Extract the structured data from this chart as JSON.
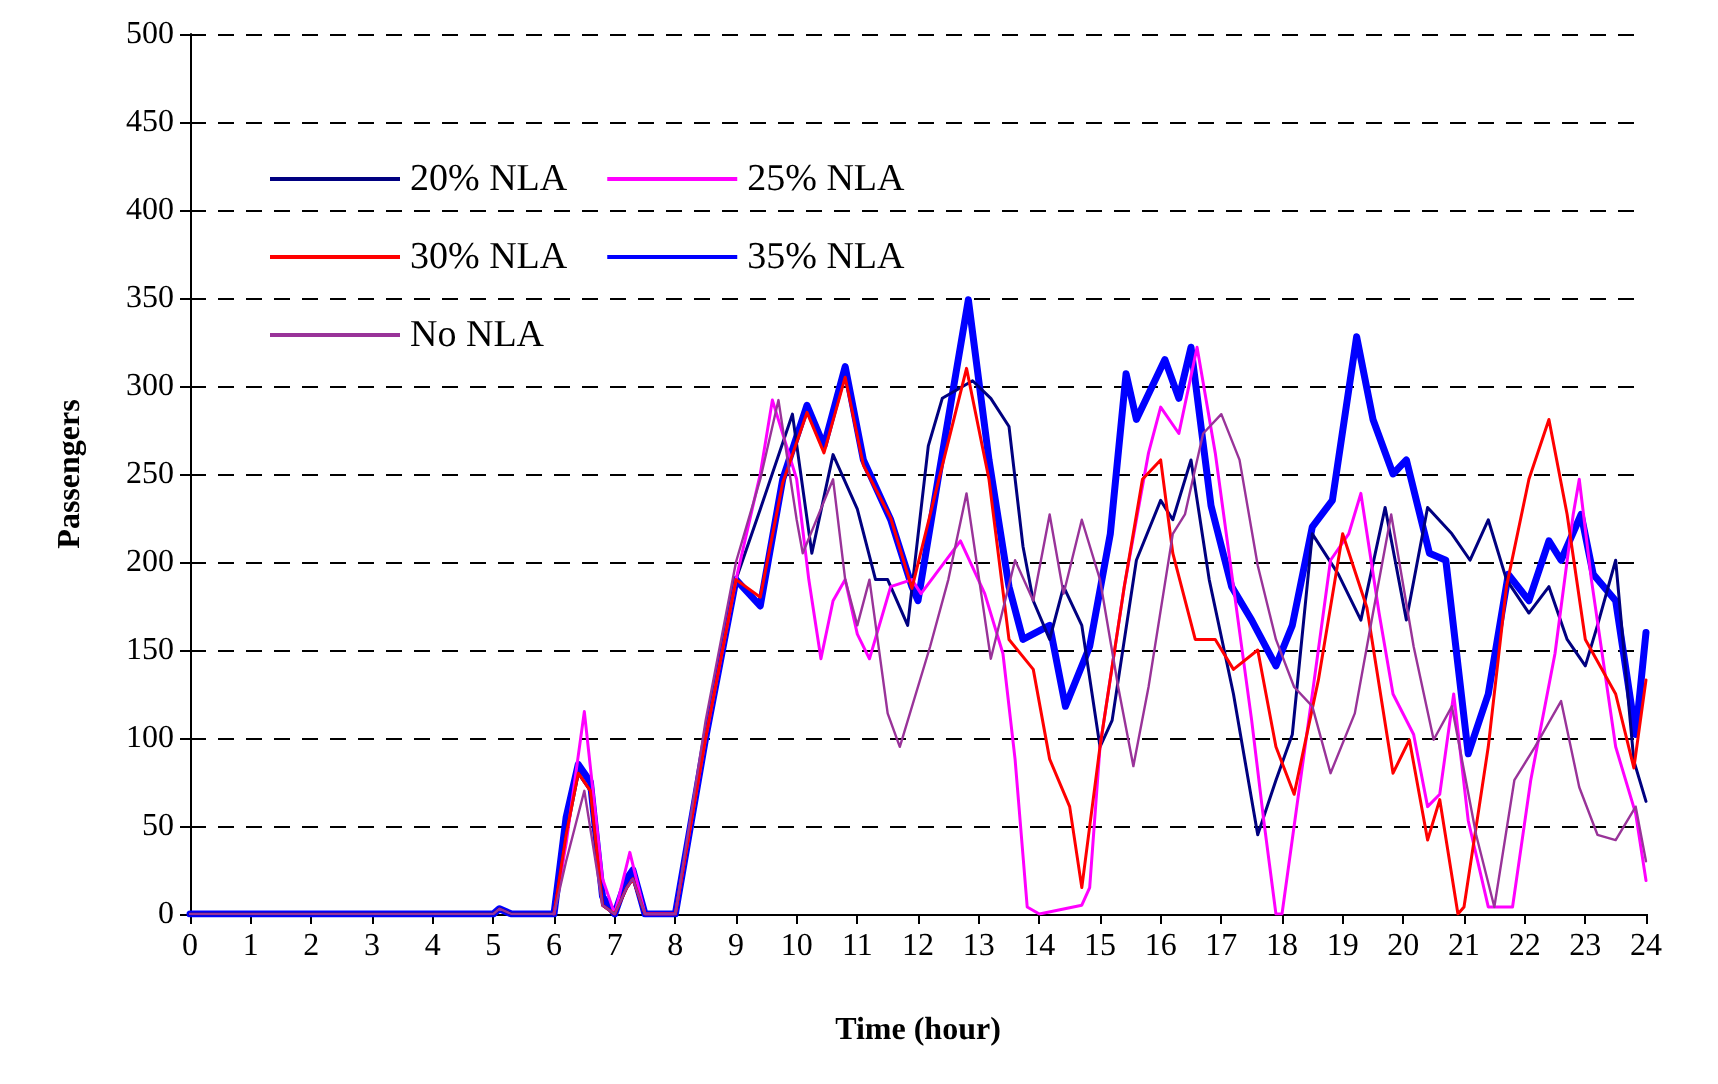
{
  "chart_data": {
    "type": "line",
    "xlabel": "Time (hour)",
    "ylabel": "Passengers",
    "xlim": [
      0,
      24
    ],
    "xticks": [
      0,
      1,
      2,
      3,
      4,
      5,
      6,
      7,
      8,
      9,
      10,
      11,
      12,
      13,
      14,
      15,
      16,
      17,
      18,
      19,
      20,
      21,
      22,
      23,
      24
    ],
    "ylim": [
      0,
      500
    ],
    "yticks": [
      0,
      50,
      100,
      150,
      200,
      250,
      300,
      350,
      400,
      450,
      500
    ],
    "grid": "y",
    "legend": "top left",
    "marker": "none",
    "series": [
      {
        "name": "20% NLA",
        "color": "#000080",
        "x": [
          0,
          5,
          5.1,
          5.3,
          6,
          6.2,
          6.4,
          6.6,
          6.8,
          7,
          7.2,
          7.3,
          7.5,
          8,
          8.5,
          9,
          9.4,
          9.93,
          10.25,
          10.6,
          11.0,
          11.3,
          11.5,
          11.83,
          12.17,
          12.4,
          12.9,
          13.2,
          13.5,
          13.73,
          13.9,
          14.17,
          14.4,
          14.7,
          15.0,
          15.2,
          15.6,
          16.0,
          16.2,
          16.5,
          16.8,
          17.2,
          17.6,
          17.9,
          18.17,
          18.5,
          18.93,
          19.3,
          19.7,
          20.05,
          20.4,
          20.8,
          21.1,
          21.4,
          21.7,
          22.07,
          22.4,
          22.7,
          23.0,
          23.2,
          23.5,
          23.8,
          24
        ],
        "values": [
          0,
          0,
          3,
          0,
          0,
          45,
          80,
          70,
          5,
          0,
          15,
          20,
          0,
          0,
          100,
          190,
          230,
          284,
          205,
          261,
          230,
          190,
          190,
          164,
          266,
          293,
          303,
          293,
          277,
          209,
          178,
          156,
          186,
          164,
          95,
          110,
          201,
          235,
          224,
          258,
          190,
          125,
          45,
          76,
          102,
          216,
          193,
          167,
          231,
          167,
          231,
          216,
          201,
          224,
          190,
          171,
          186,
          156,
          141,
          164,
          201,
          87,
          64
        ]
      },
      {
        "name": "25% NLA",
        "color": "#ff00ff",
        "x": [
          6,
          6.2,
          6.5,
          6.8,
          7,
          7.25,
          7.5,
          8,
          8.5,
          9,
          9.4,
          9.6,
          10.0,
          10.2,
          10.4,
          10.6,
          10.8,
          11.0,
          11.2,
          11.55,
          11.9,
          12.05,
          12.7,
          13.1,
          13.4,
          13.6,
          13.8,
          14.0,
          14.7,
          14.83,
          15.0,
          15.4,
          15.8,
          16.0,
          16.3,
          16.6,
          16.9,
          17.2,
          17.5,
          17.7,
          17.9,
          18.0,
          18.5,
          18.8,
          19.1,
          19.3,
          19.6,
          19.83,
          20.17,
          20.4,
          20.6,
          20.83,
          21.07,
          21.4,
          21.8,
          22.1,
          22.5,
          22.8,
          22.9,
          23.1,
          23.5,
          23.83,
          24
        ],
        "values": [
          0,
          40,
          115,
          20,
          0,
          35,
          0,
          0,
          100,
          190,
          250,
          292,
          247,
          190,
          145,
          178,
          190,
          159,
          145,
          186,
          190,
          182,
          212,
          182,
          148,
          88,
          4,
          0,
          5,
          15,
          95,
          186,
          262,
          288,
          273,
          322,
          262,
          186,
          110,
          53,
          0,
          0,
          125,
          201,
          216,
          239,
          171,
          125,
          102,
          61,
          68,
          125,
          53,
          4,
          4,
          76,
          148,
          227,
          247,
          190,
          95,
          57,
          19
        ]
      },
      {
        "name": "30% NLA",
        "color": "#ff0000",
        "x": [
          6,
          6.2,
          6.4,
          6.6,
          6.8,
          7,
          7.2,
          7.3,
          7.5,
          8,
          8.5,
          9,
          9.4,
          9.77,
          10.17,
          10.45,
          10.8,
          11.1,
          11.55,
          11.9,
          12.33,
          12.8,
          13.17,
          13.5,
          13.9,
          14.17,
          14.5,
          14.7,
          15.0,
          15.4,
          15.7,
          16.0,
          16.2,
          16.57,
          16.9,
          17.2,
          17.6,
          17.9,
          18.2,
          18.6,
          19.0,
          19.4,
          19.83,
          20.1,
          20.4,
          20.6,
          20.9,
          21.0,
          21.4,
          21.7,
          22.07,
          22.4,
          22.7,
          23.0,
          23.5,
          23.8,
          24
        ],
        "values": [
          0,
          45,
          80,
          70,
          5,
          0,
          15,
          20,
          0,
          0,
          100,
          190,
          180,
          245,
          285,
          262,
          305,
          255,
          225,
          185,
          245,
          310,
          247,
          156,
          139,
          88,
          61,
          15,
          95,
          186,
          247,
          258,
          205,
          156,
          156,
          139,
          150,
          95,
          68,
          133,
          216,
          174,
          80,
          99,
          42,
          65,
          0,
          4,
          95,
          186,
          247,
          281,
          227,
          156,
          125,
          83,
          133
        ]
      },
      {
        "name": "35% NLA",
        "color": "#0000ff",
        "x": [
          0,
          5,
          5.1,
          5.3,
          6,
          6.2,
          6.4,
          6.6,
          6.8,
          7,
          7.2,
          7.3,
          7.5,
          8,
          8.5,
          9,
          9.4,
          9.77,
          10.17,
          10.45,
          10.8,
          11.1,
          11.55,
          11.9,
          12.0,
          12.33,
          12.83,
          13.17,
          13.5,
          13.73,
          14.17,
          14.43,
          14.83,
          15.17,
          15.43,
          15.6,
          16.07,
          16.3,
          16.5,
          16.83,
          17.17,
          17.5,
          17.9,
          18.17,
          18.5,
          18.83,
          19.23,
          19.5,
          19.83,
          20.05,
          20.43,
          20.7,
          21.07,
          21.4,
          21.73,
          22.07,
          22.4,
          22.6,
          22.93,
          23.13,
          23.5,
          23.83,
          24
        ],
        "values": [
          0,
          0,
          3,
          0,
          0,
          55,
          85,
          75,
          10,
          0,
          20,
          25,
          0,
          0,
          100,
          190,
          175,
          247,
          289,
          266,
          311,
          258,
          224,
          186,
          178,
          247,
          349,
          258,
          186,
          156,
          164,
          118,
          152,
          216,
          307,
          281,
          315,
          293,
          322,
          232,
          186,
          167,
          141,
          164,
          220,
          235,
          328,
          281,
          250,
          258,
          205,
          201,
          91,
          125,
          193,
          178,
          212,
          201,
          227,
          193,
          178,
          102,
          160
        ]
      },
      {
        "name": "No NLA",
        "color": "#993399",
        "x": [
          0,
          5,
          5.1,
          5.3,
          6,
          6.2,
          6.5,
          6.8,
          7,
          7.2,
          7.3,
          7.5,
          8,
          8.5,
          9,
          9.4,
          9.7,
          10.0,
          10.1,
          10.6,
          10.8,
          11.0,
          11.2,
          11.5,
          11.7,
          12.2,
          12.5,
          12.8,
          13.2,
          13.6,
          13.9,
          14.17,
          14.4,
          14.7,
          15.0,
          15.3,
          15.55,
          15.8,
          16.2,
          16.4,
          16.7,
          17.0,
          17.3,
          17.6,
          17.9,
          18.2,
          18.5,
          18.8,
          19.2,
          19.5,
          19.8,
          20.17,
          20.5,
          20.8,
          21.2,
          21.5,
          21.83,
          22.17,
          22.6,
          22.9,
          23.2,
          23.5,
          23.83,
          24
        ],
        "values": [
          0,
          0,
          3,
          0,
          0,
          30,
          70,
          5,
          0,
          15,
          20,
          0,
          0,
          110,
          200,
          247,
          292,
          224,
          205,
          247,
          190,
          164,
          190,
          114,
          95,
          152,
          190,
          239,
          145,
          201,
          178,
          227,
          182,
          224,
          190,
          129,
          84,
          129,
          216,
          227,
          273,
          284,
          258,
          198,
          156,
          129,
          118,
          80,
          114,
          171,
          227,
          152,
          99,
          118,
          45,
          4,
          76,
          95,
          121,
          72,
          45,
          42,
          61,
          30
        ]
      }
    ]
  }
}
